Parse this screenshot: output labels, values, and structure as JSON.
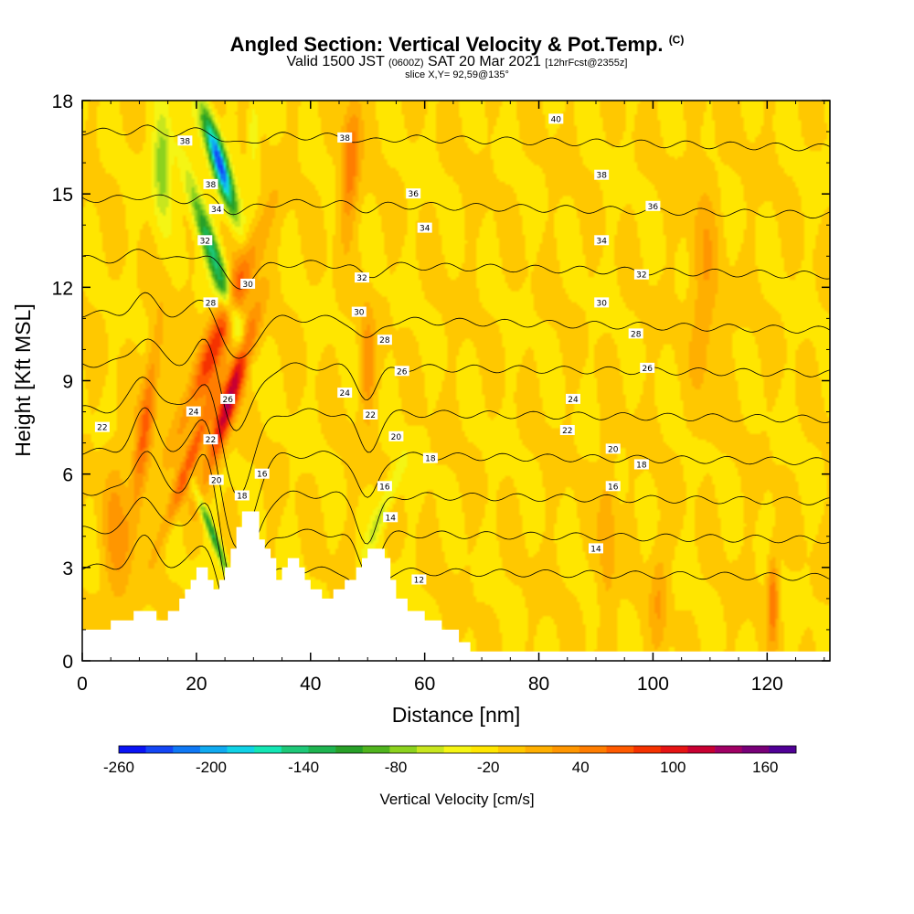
{
  "header": {
    "title": "Angled Section: Vertical Velocity & Pot.Temp.",
    "title_suffix": "(C)",
    "subtitle_a": "Valid 1500 JST",
    "subtitle_b": "(0600Z)",
    "subtitle_c": "SAT 20 Mar 2021",
    "subtitle_d": "[12hrFcst@2355z]",
    "slice": "slice X,Y= 92,59@135°"
  },
  "chart_data": {
    "type": "heatmap",
    "xlabel": "Distance [nm]",
    "ylabel": "Height [Kft MSL]",
    "xlim": [
      0,
      131
    ],
    "ylim": [
      0,
      18
    ],
    "x_ticks": [
      0,
      20,
      40,
      60,
      80,
      100,
      120
    ],
    "y_ticks": [
      0,
      3,
      6,
      9,
      12,
      15,
      18
    ],
    "background_value": 20,
    "terrain": [
      [
        0,
        1
      ],
      [
        5,
        1
      ],
      [
        5,
        1.3
      ],
      [
        9,
        1.3
      ],
      [
        9,
        1.6
      ],
      [
        13,
        1.6
      ],
      [
        13,
        1.3
      ],
      [
        15,
        1.3
      ],
      [
        15,
        1.6
      ],
      [
        17,
        1.6
      ],
      [
        17,
        2
      ],
      [
        18,
        2
      ],
      [
        18,
        2.3
      ],
      [
        19,
        2.3
      ],
      [
        19,
        2.6
      ],
      [
        20,
        2.6
      ],
      [
        20,
        3
      ],
      [
        22,
        3
      ],
      [
        22,
        2.6
      ],
      [
        23,
        2.6
      ],
      [
        23,
        2.3
      ],
      [
        24,
        2.3
      ],
      [
        24,
        2.6
      ],
      [
        25,
        2.6
      ],
      [
        25,
        3
      ],
      [
        26,
        3
      ],
      [
        26,
        3.6
      ],
      [
        27,
        3.6
      ],
      [
        27,
        4.3
      ],
      [
        28,
        4.3
      ],
      [
        28,
        4.8
      ],
      [
        31,
        4.8
      ],
      [
        31,
        3.9
      ],
      [
        32,
        3.9
      ],
      [
        32,
        3.6
      ],
      [
        33,
        3.6
      ],
      [
        33,
        3.3
      ],
      [
        34,
        3.3
      ],
      [
        34,
        2.6
      ],
      [
        35,
        2.6
      ],
      [
        35,
        3
      ],
      [
        36,
        3
      ],
      [
        36,
        3.3
      ],
      [
        38,
        3.3
      ],
      [
        38,
        3
      ],
      [
        39,
        3
      ],
      [
        39,
        2.6
      ],
      [
        40,
        2.6
      ],
      [
        40,
        2.3
      ],
      [
        42,
        2.3
      ],
      [
        42,
        2
      ],
      [
        44,
        2
      ],
      [
        44,
        2.3
      ],
      [
        46,
        2.3
      ],
      [
        46,
        2.6
      ],
      [
        48,
        2.6
      ],
      [
        48,
        3
      ],
      [
        49,
        3
      ],
      [
        49,
        3.3
      ],
      [
        50,
        3.3
      ],
      [
        50,
        3.6
      ],
      [
        53,
        3.6
      ],
      [
        53,
        3.3
      ],
      [
        54,
        3.3
      ],
      [
        54,
        2.6
      ],
      [
        55,
        2.6
      ],
      [
        55,
        2
      ],
      [
        57,
        2
      ],
      [
        57,
        1.6
      ],
      [
        60,
        1.6
      ],
      [
        60,
        1.3
      ],
      [
        63,
        1.3
      ],
      [
        63,
        1
      ],
      [
        66,
        1
      ],
      [
        66,
        0.6
      ],
      [
        68,
        0.6
      ],
      [
        68,
        0.3
      ],
      [
        131,
        0.3
      ]
    ],
    "vv_features": [
      {
        "x": 26,
        "y": 8.5,
        "value": 165,
        "sx": 1.6,
        "sy": 2.4,
        "tilt": 0.23
      },
      {
        "x": 24,
        "y": 10.5,
        "value": 110,
        "sx": 2.2,
        "sy": 3.2,
        "tilt": 0.3
      },
      {
        "x": 11,
        "y": 7.5,
        "value": 85,
        "sx": 1.4,
        "sy": 3.0,
        "tilt": 0.1
      },
      {
        "x": 19,
        "y": 6.5,
        "value": 95,
        "sx": 1.3,
        "sy": 2.4,
        "tilt": 0.28
      },
      {
        "x": 47,
        "y": 16,
        "value": 75,
        "sx": 1.6,
        "sy": 2.2,
        "tilt": 0.05
      },
      {
        "x": 50,
        "y": 9.5,
        "value": 55,
        "sx": 1.3,
        "sy": 1.8,
        "tilt": 0
      },
      {
        "x": 121,
        "y": 2,
        "value": 80,
        "sx": 0.9,
        "sy": 1.4,
        "tilt": 0
      },
      {
        "x": 92,
        "y": 4,
        "value": 40,
        "sx": 1.5,
        "sy": 2.5,
        "tilt": 0
      },
      {
        "x": 101,
        "y": 2,
        "value": 38,
        "sx": 1.5,
        "sy": 1.8,
        "tilt": 0
      },
      {
        "x": 6,
        "y": 4,
        "value": 45,
        "sx": 2.4,
        "sy": 2.5,
        "tilt": 0
      },
      {
        "x": 109,
        "y": 12,
        "value": 38,
        "sx": 2.5,
        "sy": 3.5,
        "tilt": 0
      },
      {
        "x": 24,
        "y": 16,
        "value": -250,
        "sx": 1.4,
        "sy": 1.6,
        "tilt": -0.22
      },
      {
        "x": 23,
        "y": 13,
        "value": -140,
        "sx": 1.5,
        "sy": 2.6,
        "tilt": -0.25
      },
      {
        "x": 14,
        "y": 16,
        "value": -80,
        "sx": 1.6,
        "sy": 1.8,
        "tilt": 0
      },
      {
        "x": 23,
        "y": 4,
        "value": -120,
        "sx": 0.8,
        "sy": 1.6,
        "tilt": -0.3
      },
      {
        "x": 53,
        "y": 5,
        "value": -50,
        "sx": 1.3,
        "sy": 1.6,
        "tilt": 0.3
      },
      {
        "x": 30,
        "y": 17,
        "value": -45,
        "sx": 1.0,
        "sy": 1.2,
        "tilt": 0
      }
    ],
    "theta_contours": [
      12,
      14,
      16,
      18,
      20,
      22,
      24,
      26,
      28,
      30,
      32,
      34,
      36,
      38,
      40
    ],
    "contour_labels": [
      {
        "text": "40",
        "x": 83,
        "y": 17.4
      },
      {
        "text": "38",
        "x": 46,
        "y": 16.8
      },
      {
        "text": "38",
        "x": 91,
        "y": 15.6
      },
      {
        "text": "38",
        "x": 22.5,
        "y": 15.3
      },
      {
        "text": "38",
        "x": 18,
        "y": 16.7
      },
      {
        "text": "36",
        "x": 58,
        "y": 15.0
      },
      {
        "text": "36",
        "x": 100,
        "y": 14.6
      },
      {
        "text": "34",
        "x": 23.5,
        "y": 14.5
      },
      {
        "text": "34",
        "x": 60,
        "y": 13.9
      },
      {
        "text": "34",
        "x": 91,
        "y": 13.5
      },
      {
        "text": "32",
        "x": 21.5,
        "y": 13.5
      },
      {
        "text": "32",
        "x": 49,
        "y": 12.3
      },
      {
        "text": "32",
        "x": 98,
        "y": 12.4
      },
      {
        "text": "30",
        "x": 29,
        "y": 12.1
      },
      {
        "text": "30",
        "x": 48.5,
        "y": 11.2
      },
      {
        "text": "30",
        "x": 91,
        "y": 11.5
      },
      {
        "text": "28",
        "x": 22.5,
        "y": 11.5
      },
      {
        "text": "28",
        "x": 53,
        "y": 10.3
      },
      {
        "text": "28",
        "x": 97,
        "y": 10.5
      },
      {
        "text": "26",
        "x": 56,
        "y": 9.3
      },
      {
        "text": "26",
        "x": 99,
        "y": 9.4
      },
      {
        "text": "26",
        "x": 25.5,
        "y": 8.4
      },
      {
        "text": "24",
        "x": 19.5,
        "y": 8.0
      },
      {
        "text": "24",
        "x": 46,
        "y": 8.6
      },
      {
        "text": "24",
        "x": 86,
        "y": 8.4
      },
      {
        "text": "22",
        "x": 3.5,
        "y": 7.5
      },
      {
        "text": "22",
        "x": 50.5,
        "y": 7.9
      },
      {
        "text": "22",
        "x": 22.5,
        "y": 7.1
      },
      {
        "text": "22",
        "x": 85,
        "y": 7.4
      },
      {
        "text": "20",
        "x": 55,
        "y": 7.2
      },
      {
        "text": "20",
        "x": 93,
        "y": 6.8
      },
      {
        "text": "20",
        "x": 23.5,
        "y": 5.8
      },
      {
        "text": "18",
        "x": 61,
        "y": 6.5
      },
      {
        "text": "18",
        "x": 98,
        "y": 6.3
      },
      {
        "text": "18",
        "x": 28,
        "y": 5.3
      },
      {
        "text": "16",
        "x": 31.5,
        "y": 6.0
      },
      {
        "text": "16",
        "x": 93,
        "y": 5.6
      },
      {
        "text": "16",
        "x": 53,
        "y": 5.6
      },
      {
        "text": "14",
        "x": 54,
        "y": 4.6
      },
      {
        "text": "14",
        "x": 90,
        "y": 3.6
      },
      {
        "text": "12",
        "x": 59,
        "y": 2.6
      }
    ]
  },
  "colorbar": {
    "label": "Vertical Velocity [cm/s]",
    "tick_labels": [
      "-260",
      "-200",
      "-140",
      "-80",
      "-20",
      "40",
      "100",
      "160"
    ],
    "tick_values": [
      -260,
      -200,
      -140,
      -80,
      -20,
      40,
      100,
      160
    ],
    "min": -260,
    "max": 180,
    "step": 20,
    "colors": [
      "#0a14f5",
      "#1446f5",
      "#0f78f5",
      "#10aaf0",
      "#10d2e6",
      "#14e6b4",
      "#1ec878",
      "#1eb450",
      "#28a028",
      "#50b41e",
      "#8cd21e",
      "#c8e61e",
      "#f5f514",
      "#ffe600",
      "#ffc800",
      "#ffaf00",
      "#ff9600",
      "#ff7d00",
      "#ff5a00",
      "#f53200",
      "#e61414",
      "#c80032",
      "#a00064",
      "#780078",
      "#500096"
    ]
  }
}
